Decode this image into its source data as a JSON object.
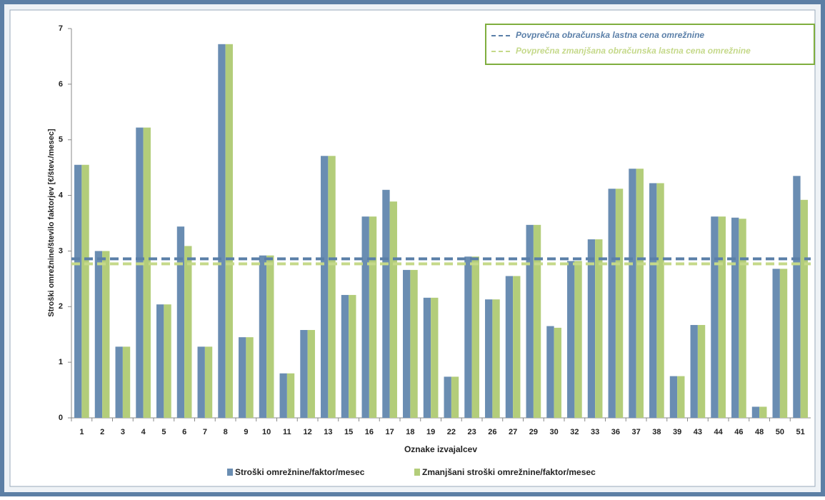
{
  "chart_data": {
    "type": "bar",
    "y_label": "Stroški omrežnine/število faktorjev [€/štev./mesec]",
    "x_label": "Oznake izvajalcev",
    "categories": [
      "1",
      "2",
      "3",
      "4",
      "5",
      "6",
      "7",
      "8",
      "9",
      "10",
      "11",
      "12",
      "13",
      "15",
      "16",
      "17",
      "18",
      "19",
      "22",
      "23",
      "26",
      "27",
      "29",
      "30",
      "32",
      "33",
      "36",
      "37",
      "38",
      "39",
      "43",
      "44",
      "46",
      "48",
      "50",
      "51"
    ],
    "series": [
      {
        "name": "Stroški omrežnine/faktor/mesec",
        "color": "#6a8db2",
        "values": [
          4.55,
          3.0,
          1.28,
          5.22,
          2.04,
          3.44,
          1.28,
          6.72,
          1.45,
          2.92,
          0.8,
          1.58,
          4.71,
          2.21,
          3.62,
          4.1,
          2.66,
          2.16,
          0.74,
          2.9,
          2.13,
          2.55,
          3.47,
          1.65,
          2.82,
          3.21,
          4.12,
          4.48,
          4.22,
          0.75,
          1.67,
          3.62,
          3.6,
          0.2,
          2.68,
          4.35
        ]
      },
      {
        "name": "Zmanjšani stroški omrežnine/faktor/mesec",
        "color": "#b3cd7a",
        "values": [
          4.55,
          3.0,
          1.28,
          5.22,
          2.04,
          3.09,
          1.28,
          6.72,
          1.45,
          2.92,
          0.8,
          1.58,
          4.71,
          2.21,
          3.62,
          3.89,
          2.66,
          2.16,
          0.74,
          2.9,
          2.13,
          2.55,
          3.47,
          1.62,
          2.82,
          3.21,
          4.12,
          4.48,
          4.22,
          0.75,
          1.67,
          3.62,
          3.58,
          0.2,
          2.68,
          3.92
        ]
      }
    ],
    "reference_lines": [
      {
        "name": "Povprečna obračunska  lastna cena omrežnine",
        "value": 2.86,
        "color": "#5a7fa8"
      },
      {
        "name": "Povprečna zmanjšana obračunska  lastna cena omrežnine",
        "value": 2.77,
        "color": "#c5d98a"
      }
    ],
    "ylim": [
      0,
      7
    ],
    "yticks": [
      0,
      1,
      2,
      3,
      4,
      5,
      6,
      7
    ],
    "grid": false
  }
}
